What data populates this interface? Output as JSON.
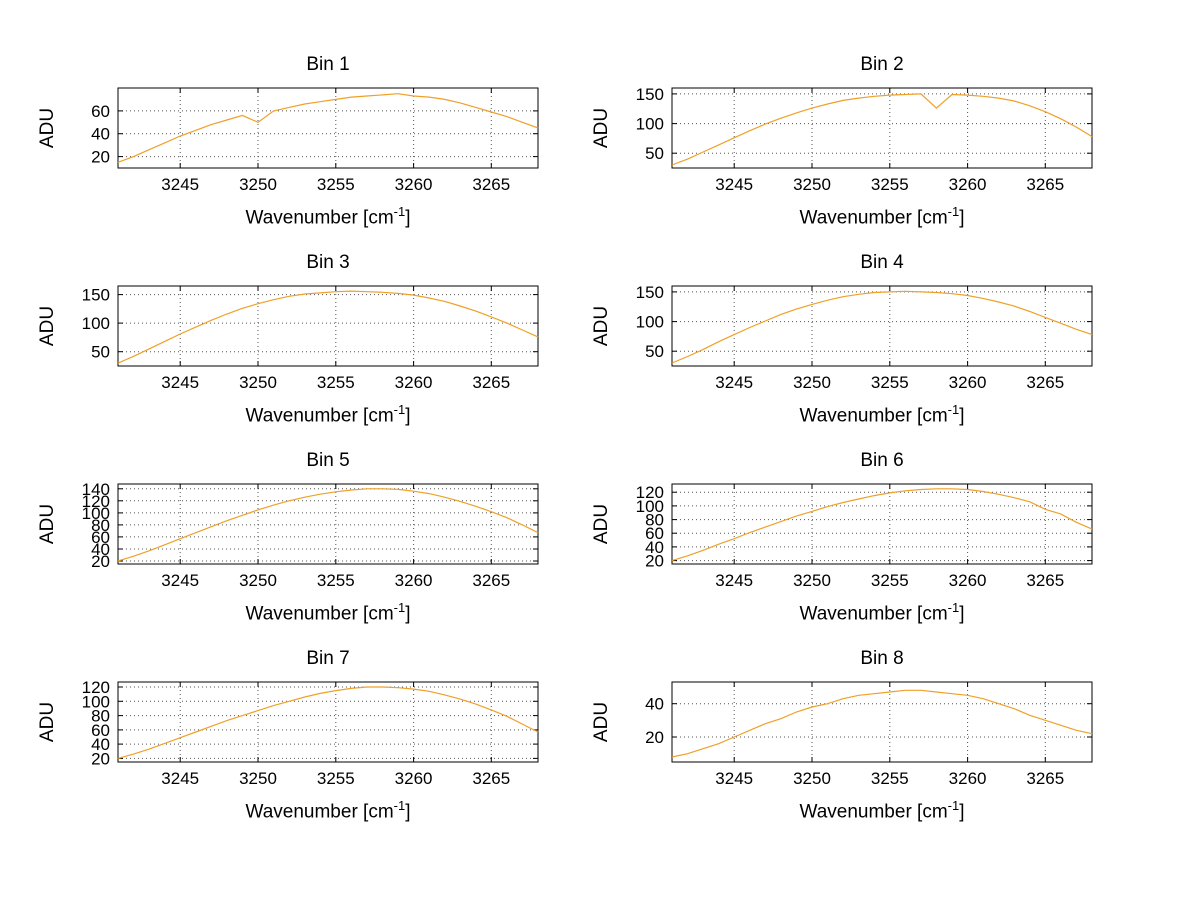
{
  "labels": {
    "xlabel_prefix": "Wavenumber [cm",
    "xlabel_sup": "-1",
    "xlabel_suffix": "]"
  },
  "chart_data": {
    "type": "line",
    "layout": "4x2-grid",
    "xlabel": "Wavenumber [cm^-1]",
    "x": [
      3241,
      3242,
      3243,
      3244,
      3245,
      3246,
      3247,
      3248,
      3249,
      3250,
      3251,
      3252,
      3253,
      3254,
      3255,
      3256,
      3257,
      3258,
      3259,
      3260,
      3261,
      3262,
      3263,
      3264,
      3265,
      3266,
      3267,
      3268
    ],
    "xlim": [
      3241,
      3268
    ],
    "xticks": [
      3245,
      3250,
      3255,
      3260,
      3265
    ],
    "style": {
      "line_color": "#EFA028",
      "grid_color": "#555555",
      "axis_color": "#000000",
      "background": "#ffffff"
    },
    "charts": [
      {
        "title": "Bin 1",
        "ylabel": "ADU",
        "ylim": [
          10,
          80
        ],
        "yticks": [
          20,
          40,
          60
        ],
        "y": [
          15,
          20,
          26,
          32,
          38,
          43,
          48,
          52,
          56,
          50,
          60,
          63,
          66,
          68,
          70,
          72,
          73,
          74,
          75,
          73,
          72,
          70,
          67,
          63,
          59,
          55,
          50,
          45
        ]
      },
      {
        "title": "Bin 2",
        "ylabel": "ADU",
        "ylim": [
          25,
          160
        ],
        "yticks": [
          50,
          100,
          150
        ],
        "y": [
          30,
          40,
          52,
          64,
          76,
          88,
          99,
          109,
          118,
          126,
          133,
          139,
          143,
          146,
          148,
          149,
          150,
          126,
          149,
          148,
          146,
          143,
          138,
          130,
          120,
          108,
          94,
          78
        ]
      },
      {
        "title": "Bin 3",
        "ylabel": "ADU",
        "ylim": [
          25,
          165
        ],
        "yticks": [
          50,
          100,
          150
        ],
        "y": [
          30,
          42,
          55,
          68,
          81,
          93,
          105,
          116,
          126,
          134,
          141,
          147,
          151,
          153,
          155,
          156,
          155,
          154,
          152,
          149,
          144,
          138,
          130,
          121,
          111,
          100,
          88,
          76
        ]
      },
      {
        "title": "Bin 4",
        "ylabel": "ADU",
        "ylim": [
          25,
          160
        ],
        "yticks": [
          50,
          100,
          150
        ],
        "y": [
          30,
          41,
          53,
          66,
          78,
          90,
          101,
          112,
          121,
          129,
          136,
          142,
          146,
          149,
          150,
          151,
          150,
          149,
          147,
          144,
          139,
          133,
          126,
          117,
          107,
          97,
          87,
          78
        ]
      },
      {
        "title": "Bin 5",
        "ylabel": "ADU",
        "ylim": [
          15,
          148
        ],
        "yticks": [
          20,
          40,
          60,
          80,
          100,
          120,
          140
        ],
        "y": [
          20,
          28,
          37,
          47,
          57,
          67,
          77,
          87,
          96,
          105,
          113,
          120,
          126,
          131,
          135,
          138,
          140,
          140,
          139,
          136,
          132,
          126,
          119,
          111,
          102,
          92,
          80,
          67
        ]
      },
      {
        "title": "Bin 6",
        "ylabel": "ADU",
        "ylim": [
          15,
          132
        ],
        "yticks": [
          20,
          40,
          60,
          80,
          100,
          120
        ],
        "y": [
          20,
          27,
          35,
          44,
          52,
          61,
          69,
          77,
          85,
          92,
          99,
          105,
          110,
          115,
          119,
          122,
          124,
          125,
          125,
          124,
          121,
          117,
          112,
          106,
          95,
          88,
          76,
          66
        ]
      },
      {
        "title": "Bin 7",
        "ylabel": "ADU",
        "ylim": [
          15,
          127
        ],
        "yticks": [
          20,
          40,
          60,
          80,
          100,
          120
        ],
        "y": [
          20,
          26,
          33,
          41,
          49,
          57,
          65,
          73,
          80,
          87,
          94,
          100,
          106,
          111,
          115,
          118,
          120,
          120,
          119,
          117,
          114,
          109,
          103,
          96,
          88,
          79,
          68,
          57
        ]
      },
      {
        "title": "Bin 8",
        "ylabel": "ADU",
        "ylim": [
          5,
          53
        ],
        "yticks": [
          20,
          40
        ],
        "y": [
          8,
          10,
          13,
          16,
          20,
          24,
          28,
          31,
          35,
          38,
          40,
          43,
          45,
          46,
          47,
          48,
          48,
          47,
          46,
          45,
          43,
          40,
          37,
          33,
          30,
          27,
          24,
          22
        ]
      }
    ]
  }
}
